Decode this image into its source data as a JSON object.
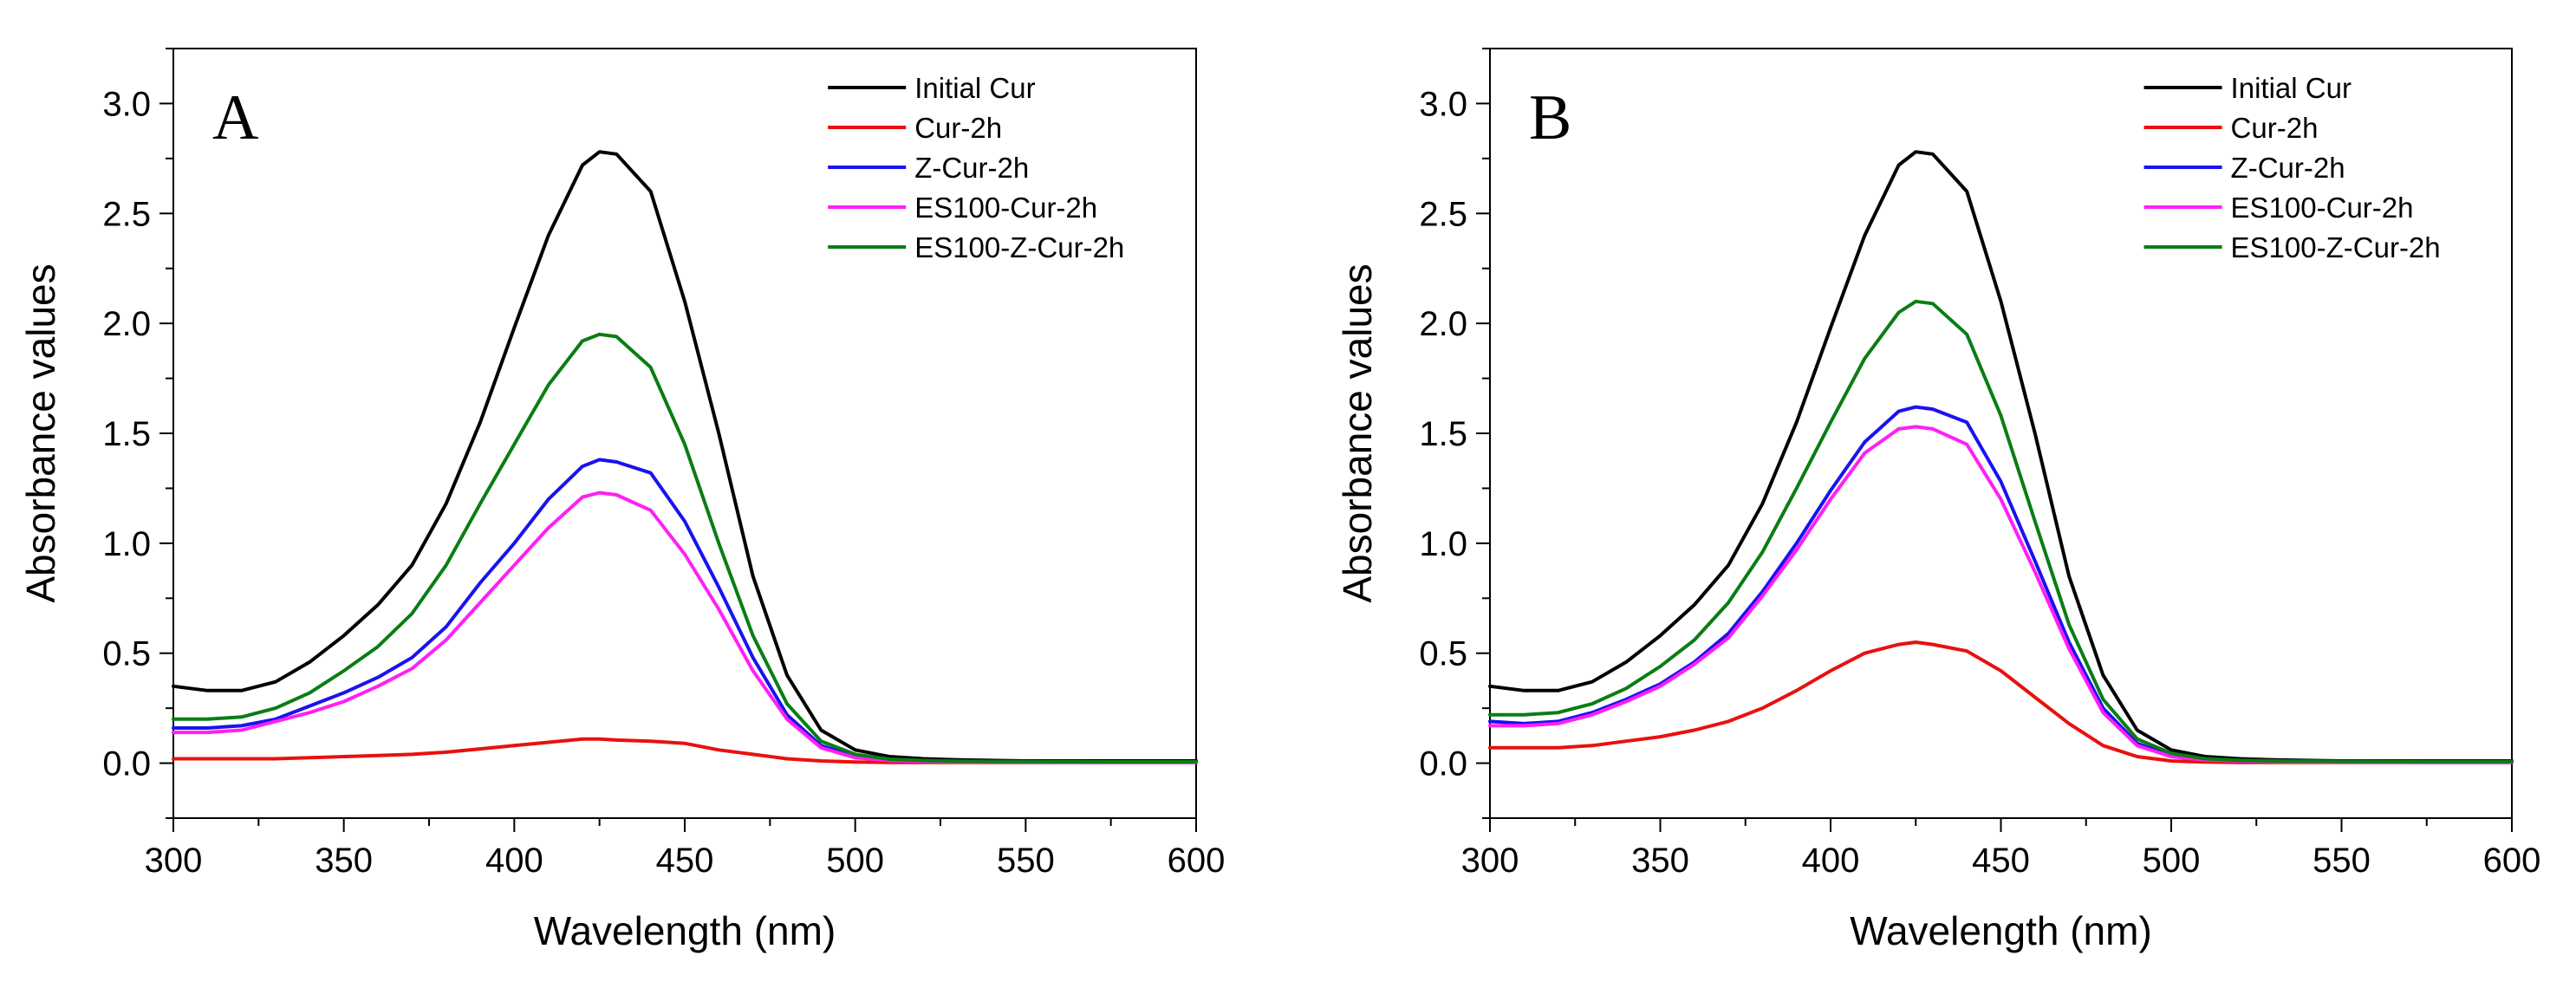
{
  "chart_data": [
    {
      "type": "line",
      "panel_label": "A",
      "xlabel": "Wavelength (nm)",
      "ylabel": "Absorbance values",
      "xlim": [
        300,
        600
      ],
      "ylim": [
        -0.25,
        3.25
      ],
      "xticks": [
        300,
        350,
        400,
        450,
        500,
        550,
        600
      ],
      "xtick_labels": [
        "300",
        "350",
        "400",
        "450",
        "500",
        "550",
        "600"
      ],
      "yticks": [
        0.0,
        0.5,
        1.0,
        1.5,
        2.0,
        2.5,
        3.0
      ],
      "ytick_labels": [
        "0.0",
        "0.5",
        "1.0",
        "1.5",
        "2.0",
        "2.5",
        "3.0"
      ],
      "grid": false,
      "legend_position": "top-right",
      "x": [
        300,
        310,
        320,
        330,
        340,
        350,
        360,
        370,
        380,
        390,
        400,
        410,
        420,
        425,
        430,
        440,
        450,
        460,
        470,
        480,
        490,
        500,
        510,
        520,
        530,
        550,
        575,
        600
      ],
      "series": [
        {
          "name": "Initial Cur",
          "color": "#000000",
          "values": [
            0.35,
            0.33,
            0.33,
            0.37,
            0.46,
            0.58,
            0.72,
            0.9,
            1.18,
            1.55,
            1.98,
            2.4,
            2.72,
            2.78,
            2.77,
            2.6,
            2.1,
            1.5,
            0.85,
            0.4,
            0.15,
            0.06,
            0.03,
            0.02,
            0.015,
            0.01,
            0.01,
            0.01
          ]
        },
        {
          "name": "Cur-2h",
          "color": "#e8110f",
          "values": [
            0.02,
            0.02,
            0.02,
            0.02,
            0.025,
            0.03,
            0.035,
            0.04,
            0.05,
            0.065,
            0.08,
            0.095,
            0.11,
            0.11,
            0.105,
            0.1,
            0.09,
            0.06,
            0.04,
            0.02,
            0.01,
            0.005,
            0.003,
            0.003,
            0.003,
            0.003,
            0.003,
            0.003
          ]
        },
        {
          "name": "Z-Cur-2h",
          "color": "#1a12f0",
          "values": [
            0.16,
            0.16,
            0.17,
            0.2,
            0.26,
            0.32,
            0.39,
            0.48,
            0.62,
            0.82,
            1.0,
            1.2,
            1.35,
            1.38,
            1.37,
            1.32,
            1.1,
            0.8,
            0.48,
            0.22,
            0.08,
            0.03,
            0.015,
            0.01,
            0.008,
            0.006,
            0.005,
            0.005
          ]
        },
        {
          "name": "ES100-Cur-2h",
          "color": "#ff1ff5",
          "values": [
            0.14,
            0.14,
            0.15,
            0.19,
            0.23,
            0.28,
            0.35,
            0.43,
            0.56,
            0.73,
            0.9,
            1.07,
            1.21,
            1.23,
            1.22,
            1.15,
            0.95,
            0.7,
            0.42,
            0.2,
            0.07,
            0.025,
            0.012,
            0.008,
            0.006,
            0.005,
            0.004,
            0.004
          ]
        },
        {
          "name": "ES100-Z-Cur-2h",
          "color": "#0a7d14",
          "values": [
            0.2,
            0.2,
            0.21,
            0.25,
            0.32,
            0.42,
            0.53,
            0.68,
            0.9,
            1.18,
            1.45,
            1.72,
            1.92,
            1.95,
            1.94,
            1.8,
            1.45,
            1.0,
            0.58,
            0.27,
            0.1,
            0.04,
            0.018,
            0.012,
            0.009,
            0.007,
            0.006,
            0.006
          ]
        }
      ]
    },
    {
      "type": "line",
      "panel_label": "B",
      "xlabel": "Wavelength (nm)",
      "ylabel": "Absorbance values",
      "xlim": [
        300,
        600
      ],
      "ylim": [
        -0.25,
        3.25
      ],
      "xticks": [
        300,
        350,
        400,
        450,
        500,
        550,
        600
      ],
      "xtick_labels": [
        "300",
        "350",
        "400",
        "450",
        "500",
        "550",
        "600"
      ],
      "yticks": [
        0.0,
        0.5,
        1.0,
        1.5,
        2.0,
        2.5,
        3.0
      ],
      "ytick_labels": [
        "0.0",
        "0.5",
        "1.0",
        "1.5",
        "2.0",
        "2.5",
        "3.0"
      ],
      "grid": false,
      "legend_position": "top-right",
      "x": [
        300,
        310,
        320,
        330,
        340,
        350,
        360,
        370,
        380,
        390,
        400,
        410,
        420,
        425,
        430,
        440,
        450,
        460,
        470,
        480,
        490,
        500,
        510,
        520,
        530,
        550,
        575,
        600
      ],
      "series": [
        {
          "name": "Initial Cur",
          "color": "#000000",
          "values": [
            0.35,
            0.33,
            0.33,
            0.37,
            0.46,
            0.58,
            0.72,
            0.9,
            1.18,
            1.55,
            1.98,
            2.4,
            2.72,
            2.78,
            2.77,
            2.6,
            2.1,
            1.5,
            0.85,
            0.4,
            0.15,
            0.06,
            0.03,
            0.02,
            0.015,
            0.01,
            0.01,
            0.01
          ]
        },
        {
          "name": "Cur-2h",
          "color": "#e8110f",
          "values": [
            0.07,
            0.07,
            0.07,
            0.08,
            0.1,
            0.12,
            0.15,
            0.19,
            0.25,
            0.33,
            0.42,
            0.5,
            0.54,
            0.55,
            0.54,
            0.51,
            0.42,
            0.3,
            0.18,
            0.08,
            0.03,
            0.01,
            0.005,
            0.003,
            0.003,
            0.003,
            0.003,
            0.003
          ]
        },
        {
          "name": "Z-Cur-2h",
          "color": "#1a12f0",
          "values": [
            0.19,
            0.18,
            0.19,
            0.23,
            0.29,
            0.36,
            0.46,
            0.59,
            0.78,
            1.0,
            1.24,
            1.46,
            1.6,
            1.62,
            1.61,
            1.55,
            1.28,
            0.92,
            0.55,
            0.25,
            0.09,
            0.035,
            0.016,
            0.01,
            0.008,
            0.006,
            0.005,
            0.005
          ]
        },
        {
          "name": "ES100-Cur-2h",
          "color": "#ff1ff5",
          "values": [
            0.17,
            0.17,
            0.18,
            0.22,
            0.28,
            0.35,
            0.45,
            0.57,
            0.76,
            0.97,
            1.2,
            1.41,
            1.52,
            1.53,
            1.52,
            1.45,
            1.2,
            0.87,
            0.52,
            0.23,
            0.08,
            0.03,
            0.015,
            0.01,
            0.007,
            0.005,
            0.004,
            0.004
          ]
        },
        {
          "name": "ES100-Z-Cur-2h",
          "color": "#0a7d14",
          "values": [
            0.22,
            0.22,
            0.23,
            0.27,
            0.34,
            0.44,
            0.56,
            0.73,
            0.96,
            1.25,
            1.55,
            1.84,
            2.05,
            2.1,
            2.09,
            1.95,
            1.58,
            1.1,
            0.63,
            0.29,
            0.11,
            0.045,
            0.02,
            0.013,
            0.01,
            0.008,
            0.007,
            0.007
          ]
        }
      ]
    }
  ]
}
